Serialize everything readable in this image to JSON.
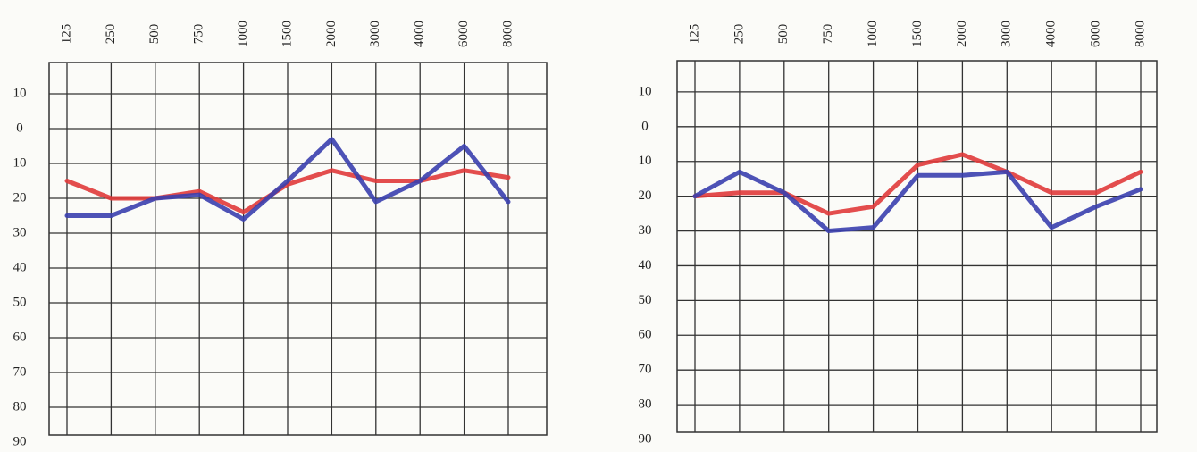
{
  "chart_data": [
    {
      "type": "line",
      "categories": [
        "125",
        "250",
        "500",
        "750",
        "1000",
        "1500",
        "2000",
        "3000",
        "4000",
        "6000",
        "8000"
      ],
      "series": [
        {
          "color": "#e03a3a",
          "values": [
            15,
            20,
            20,
            18,
            24,
            16,
            12,
            15,
            15,
            12,
            14
          ]
        },
        {
          "color": "#3a3fae",
          "values": [
            25,
            25,
            20,
            19,
            26,
            15,
            3,
            21,
            15,
            5,
            21
          ]
        }
      ],
      "ylim": [
        -20,
        90
      ],
      "yticks": [
        {
          "value": -10,
          "label": "10"
        },
        0,
        10,
        20,
        30,
        40,
        50,
        60,
        70,
        80,
        90
      ],
      "y_inverted": true,
      "grid": true
    },
    {
      "type": "line",
      "categories": [
        "125",
        "250",
        "500",
        "750",
        "1000",
        "1500",
        "2000",
        "3000",
        "4000",
        "6000",
        "8000"
      ],
      "series": [
        {
          "color": "#e03a3a",
          "values": [
            20,
            19,
            19,
            25,
            23,
            11,
            8,
            13,
            19,
            19,
            13
          ]
        },
        {
          "color": "#3a3fae",
          "values": [
            20,
            13,
            19,
            30,
            29,
            14,
            14,
            13,
            29,
            23,
            18
          ]
        }
      ],
      "ylim": [
        -20,
        90
      ],
      "yticks": [
        {
          "value": -10,
          "label": "10"
        },
        0,
        10,
        20,
        30,
        40,
        50,
        60,
        70,
        80,
        90
      ],
      "y_inverted": true,
      "grid": true
    }
  ]
}
